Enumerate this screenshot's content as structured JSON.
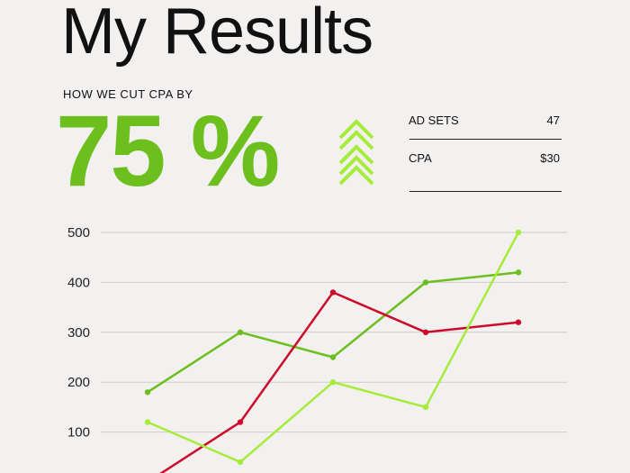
{
  "page": {
    "title": "My Results",
    "subtitle": "HOW WE CUT CPA BY",
    "headline_value": "75 %"
  },
  "stats": [
    {
      "label": "AD SETS",
      "value": "47"
    },
    {
      "label": "CPA",
      "value": "$30"
    }
  ],
  "colors": {
    "background": "#f3f0f0",
    "accent_green": "#6cbf1c",
    "lime": "#a6ec3a",
    "red": "#cc0b2a",
    "grid": "#cfcccc"
  },
  "icons": [
    "triple-chevron-up-icon"
  ],
  "chart_data": {
    "type": "line",
    "title": "",
    "xlabel": "",
    "ylabel": "",
    "ylim": [
      0,
      500
    ],
    "yticks": [
      "100",
      "200",
      "300",
      "400",
      "500"
    ],
    "grid": true,
    "x": [
      1,
      2,
      3,
      4,
      5
    ],
    "series": [
      {
        "color": "#6cbf1c",
        "values": [
          180,
          300,
          250,
          400,
          420
        ]
      },
      {
        "color": "#cc0b2a",
        "values": [
          0,
          120,
          380,
          300,
          320
        ]
      },
      {
        "color": "#a6ec3a",
        "values": [
          120,
          40,
          200,
          150,
          500
        ]
      }
    ]
  }
}
